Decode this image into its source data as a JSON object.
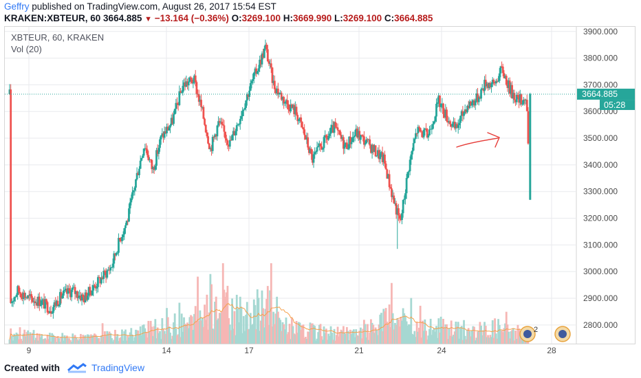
{
  "header": {
    "author": "Geffry",
    "published_text": "published on TradingView.com, August 26, 2017 15:54 EST",
    "symbol": "KRAKEN:XBTEUR, 60",
    "last": "3664.885",
    "change": "−13.164 (−0.36%)",
    "o_label": "O:",
    "o_value": "3269.100",
    "h_label": "H:",
    "h_value": "3669.990",
    "l_label": "L:",
    "l_value": "3269.100",
    "c_label": "C:",
    "c_value": "3664.885"
  },
  "legend": {
    "title": "XBTEUR, 60, KRAKEN",
    "volume": "Vol (20)"
  },
  "price_tag": {
    "price": "3664.885",
    "countdown": "05:28"
  },
  "footer": {
    "created_with": "Created with",
    "brand": "TradingView"
  },
  "colors": {
    "up": "#26a69a",
    "down": "#ef5350",
    "volume_ma": "#f5a04a",
    "grid": "#e8eaed",
    "axis_text": "#4a4a4a",
    "annotation": "#e53935"
  },
  "chart_data": {
    "type": "candlestick",
    "title": "XBTEUR, 60, KRAKEN",
    "y_range": [
      2730,
      3920
    ],
    "y_ticks": [
      2800,
      2900,
      3000,
      3100,
      3200,
      3300,
      3400,
      3500,
      3600,
      3700,
      3800,
      3900
    ],
    "y_tick_labels": [
      "2800.000",
      "2900.000",
      "3000.000",
      "3100.000",
      "3200.000",
      "3300.000",
      "3400.000",
      "3500.000",
      "3600.000",
      "3700.000",
      "3800.000",
      "3900.000"
    ],
    "x_ticks": [
      9,
      14,
      17,
      21,
      24,
      28
    ],
    "x_tick_days": [
      9.0,
      14.0,
      17.0,
      21.0,
      24.0,
      28.0
    ],
    "x_range_days": [
      8.2,
      28.9
    ],
    "last_price": 3664.885,
    "price_path": [
      [
        8.3,
        2880
      ],
      [
        8.6,
        2930
      ],
      [
        9.0,
        2900
      ],
      [
        9.4,
        2890
      ],
      [
        9.8,
        2860
      ],
      [
        10.2,
        2910
      ],
      [
        10.6,
        2930
      ],
      [
        11.0,
        2900
      ],
      [
        11.5,
        2960
      ],
      [
        12.0,
        3020
      ],
      [
        12.3,
        3120
      ],
      [
        12.6,
        3200
      ],
      [
        12.9,
        3350
      ],
      [
        13.2,
        3480
      ],
      [
        13.5,
        3380
      ],
      [
        13.8,
        3500
      ],
      [
        14.2,
        3560
      ],
      [
        14.6,
        3700
      ],
      [
        15.0,
        3720
      ],
      [
        15.3,
        3600
      ],
      [
        15.6,
        3460
      ],
      [
        15.9,
        3560
      ],
      [
        16.3,
        3480
      ],
      [
        16.6,
        3560
      ],
      [
        17.0,
        3680
      ],
      [
        17.3,
        3760
      ],
      [
        17.6,
        3840
      ],
      [
        17.9,
        3700
      ],
      [
        18.3,
        3640
      ],
      [
        18.7,
        3600
      ],
      [
        19.0,
        3520
      ],
      [
        19.3,
        3420
      ],
      [
        19.7,
        3480
      ],
      [
        20.1,
        3540
      ],
      [
        20.5,
        3470
      ],
      [
        20.9,
        3520
      ],
      [
        21.3,
        3480
      ],
      [
        21.6,
        3450
      ],
      [
        21.9,
        3420
      ],
      [
        22.2,
        3290
      ],
      [
        22.5,
        3180
      ],
      [
        22.8,
        3390
      ],
      [
        23.1,
        3530
      ],
      [
        23.5,
        3510
      ],
      [
        23.9,
        3640
      ],
      [
        24.2,
        3580
      ],
      [
        24.5,
        3530
      ],
      [
        24.9,
        3620
      ],
      [
        25.3,
        3650
      ],
      [
        25.6,
        3710
      ],
      [
        25.9,
        3700
      ],
      [
        26.2,
        3760
      ],
      [
        26.5,
        3680
      ],
      [
        26.8,
        3640
      ],
      [
        27.0,
        3650
      ],
      [
        27.1,
        3635
      ],
      [
        27.2,
        3270
      ],
      [
        27.25,
        3665
      ]
    ],
    "key_points": {
      "peak_high": 3850,
      "peak_day": 17.7,
      "dip_low": 3085,
      "dip_day": 22.4,
      "last_open": 3269.1,
      "last_high": 3669.99,
      "last_low": 3269.1,
      "last_close": 3664.885
    },
    "volume_axis_max": 1,
    "volume_profile": [
      [
        8.3,
        0.25
      ],
      [
        9.5,
        0.15
      ],
      [
        11.0,
        0.12
      ],
      [
        12.5,
        0.2
      ],
      [
        14.0,
        0.35
      ],
      [
        15.0,
        0.45
      ],
      [
        15.8,
        0.85
      ],
      [
        17.0,
        0.5
      ],
      [
        17.6,
        0.9
      ],
      [
        18.5,
        0.3
      ],
      [
        19.5,
        0.25
      ],
      [
        21.0,
        0.2
      ],
      [
        22.3,
        0.55
      ],
      [
        23.0,
        0.3
      ],
      [
        24.0,
        0.35
      ],
      [
        25.0,
        0.25
      ],
      [
        26.0,
        0.35
      ],
      [
        27.0,
        0.15
      ]
    ]
  }
}
